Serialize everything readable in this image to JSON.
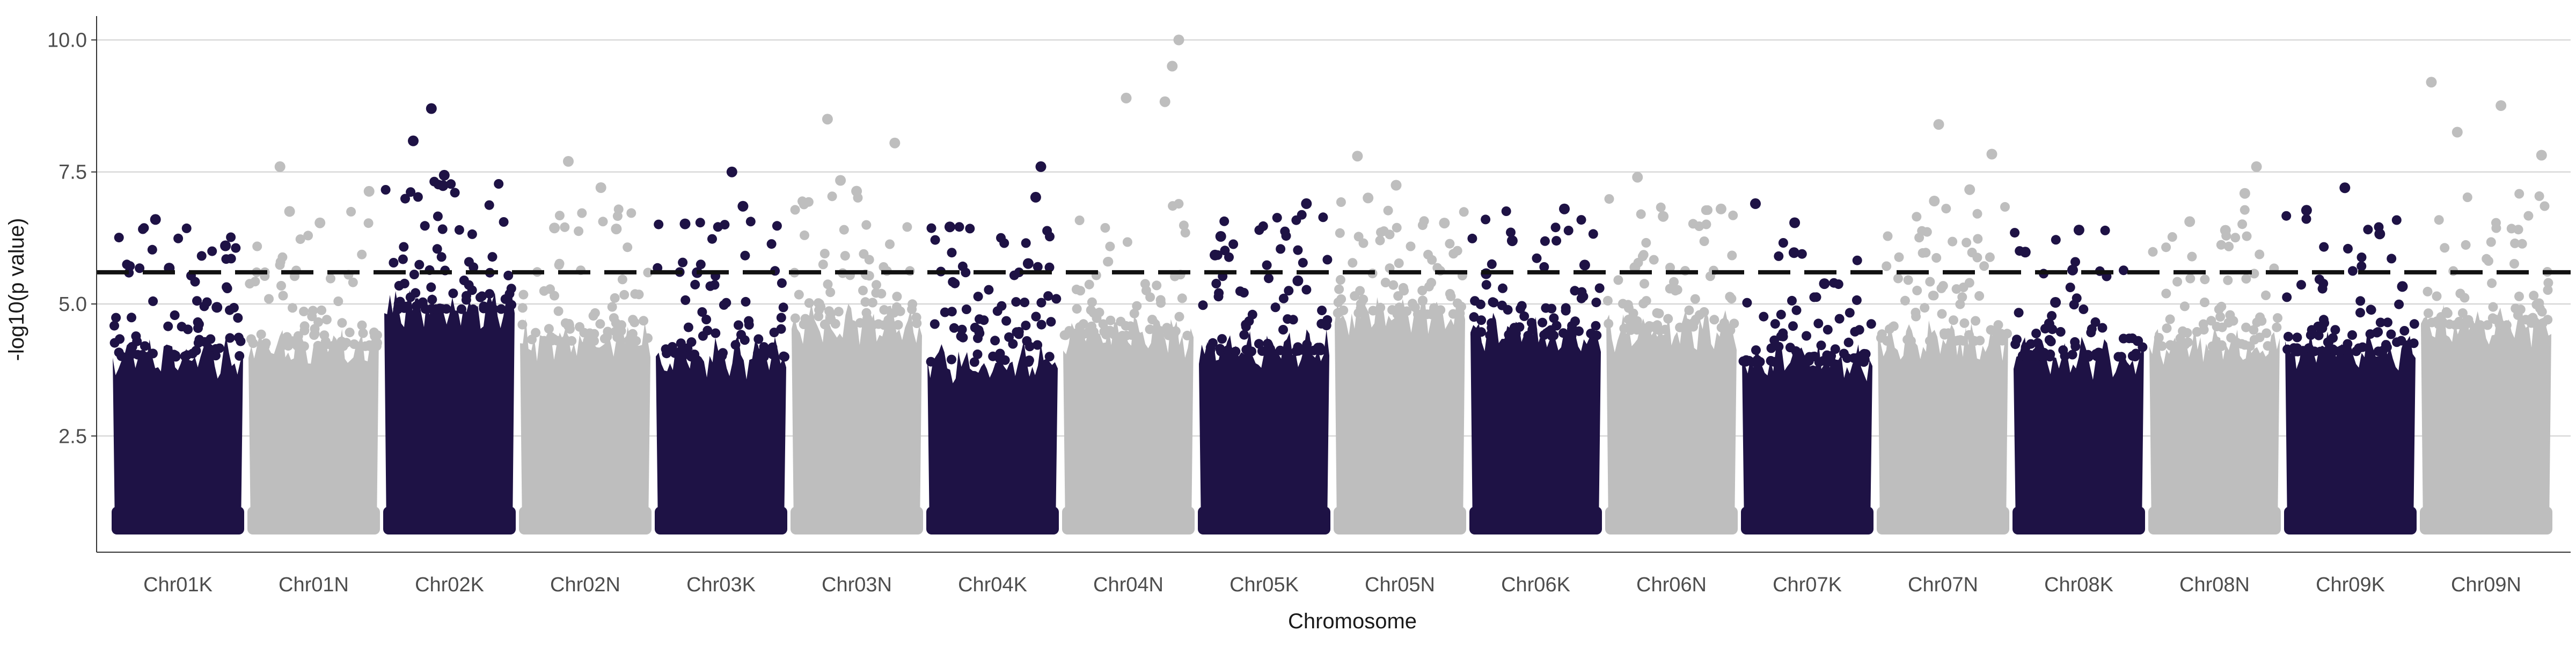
{
  "chart_data": {
    "type": "scatter",
    "subtype": "manhattan",
    "title": "",
    "xlabel": "Chromosome",
    "ylabel": "-log10(p value)",
    "ylim": [
      0.3,
      10.35
    ],
    "yticks": [
      {
        "value": 2.5,
        "label": "2.5"
      },
      {
        "value": 5.0,
        "label": "5.0"
      },
      {
        "value": 7.5,
        "label": "7.5"
      },
      {
        "value": 10.0,
        "label": "10.0"
      }
    ],
    "grid": "horizontal",
    "legend": "none",
    "threshold": 5.6,
    "colors": {
      "dark": "#1e1245",
      "light": "#bebebe",
      "grid": "#d0d0d0",
      "threshold": "#111111",
      "axis": "#333333"
    },
    "chromosomes": [
      {
        "label": "Chr01K",
        "color": "dark",
        "base_top": 4.0,
        "max": 6.6
      },
      {
        "label": "Chr01N",
        "color": "light",
        "base_top": 4.2,
        "max": 7.6
      },
      {
        "label": "Chr02K",
        "color": "dark",
        "base_top": 4.9,
        "max": 8.7
      },
      {
        "label": "Chr02N",
        "color": "light",
        "base_top": 4.3,
        "max": 7.7
      },
      {
        "label": "Chr03K",
        "color": "dark",
        "base_top": 4.0,
        "max": 7.5
      },
      {
        "label": "Chr03N",
        "color": "light",
        "base_top": 4.6,
        "max": 8.5
      },
      {
        "label": "Chr04K",
        "color": "dark",
        "base_top": 3.9,
        "max": 7.6
      },
      {
        "label": "Chr04N",
        "color": "light",
        "base_top": 4.4,
        "max": 10.0
      },
      {
        "label": "Chr05K",
        "color": "dark",
        "base_top": 4.1,
        "max": 6.9
      },
      {
        "label": "Chr05N",
        "color": "light",
        "base_top": 4.8,
        "max": 7.8
      },
      {
        "label": "Chr06K",
        "color": "dark",
        "base_top": 4.4,
        "max": 6.8
      },
      {
        "label": "Chr06N",
        "color": "light",
        "base_top": 4.5,
        "max": 7.4
      },
      {
        "label": "Chr07K",
        "color": "dark",
        "base_top": 3.9,
        "max": 6.9
      },
      {
        "label": "Chr07N",
        "color": "light",
        "base_top": 4.3,
        "max": 8.4
      },
      {
        "label": "Chr08K",
        "color": "dark",
        "base_top": 4.0,
        "max": 6.4
      },
      {
        "label": "Chr08N",
        "color": "light",
        "base_top": 4.2,
        "max": 7.6
      },
      {
        "label": "Chr09K",
        "color": "dark",
        "base_top": 4.1,
        "max": 7.2
      },
      {
        "label": "Chr09N",
        "color": "light",
        "base_top": 4.6,
        "max": 9.2
      }
    ]
  }
}
